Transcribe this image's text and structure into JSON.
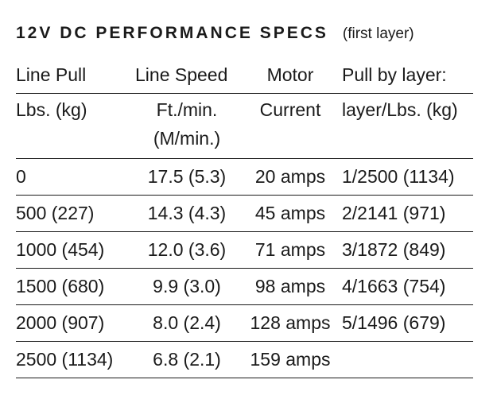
{
  "title": "12V DC PERFORMANCE SPECS",
  "subtitle": "(first layer)",
  "header_row1": [
    "Line Pull",
    "Line Speed",
    "Motor",
    "Pull by layer:"
  ],
  "header_row2": {
    "col0": "Lbs. (kg)",
    "col1_line1": "Ft./min.",
    "col1_line2": "(M/min.)",
    "col2": "Current",
    "col3": "layer/Lbs. (kg)"
  },
  "rows": [
    [
      "0",
      "17.5 (5.3)",
      "20 amps",
      "1/2500 (1134)"
    ],
    [
      "500 (227)",
      "14.3 (4.3)",
      "45 amps",
      "2/2141 (971)"
    ],
    [
      "1000 (454)",
      "12.0 (3.6)",
      "71 amps",
      "3/1872 (849)"
    ],
    [
      "1500 (680)",
      "9.9 (3.0)",
      "98 amps",
      "4/1663 (754)"
    ],
    [
      "2000 (907)",
      "8.0 (2.4)",
      "128 amps",
      "5/1496 (679)"
    ],
    [
      "2500 (1134)",
      "6.8 (2.1)",
      "159 amps",
      ""
    ]
  ]
}
